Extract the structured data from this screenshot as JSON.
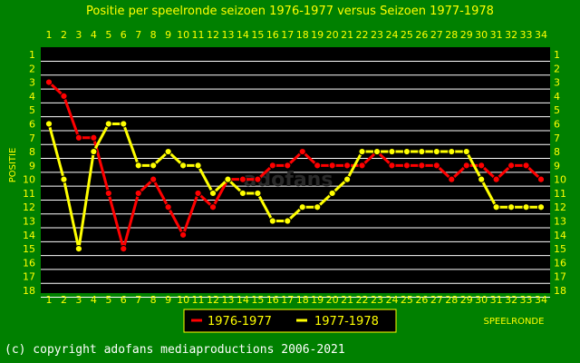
{
  "chart_data": {
    "type": "line",
    "title": "Positie per speelronde seizoen 1976-1977 versus Seizoen 1977-1978",
    "xlabel": "SPEELRONDE",
    "ylabel": "POSITIE",
    "x": [
      1,
      2,
      3,
      4,
      5,
      6,
      7,
      8,
      9,
      10,
      11,
      12,
      13,
      14,
      15,
      16,
      17,
      18,
      19,
      20,
      21,
      22,
      23,
      24,
      25,
      26,
      27,
      28,
      29,
      30,
      31,
      32,
      33,
      34
    ],
    "xlim": [
      1,
      34
    ],
    "ylim": [
      18,
      1
    ],
    "y_ticks": [
      1,
      2,
      3,
      4,
      5,
      6,
      7,
      8,
      9,
      10,
      11,
      12,
      13,
      14,
      15,
      16,
      17,
      18
    ],
    "grid": true,
    "legend_position": "bottom-center",
    "series": [
      {
        "name": "1976-1977",
        "color": "#ff0000",
        "values": [
          3,
          4,
          7,
          7,
          11,
          15,
          11,
          10,
          12,
          14,
          11,
          12,
          10,
          10,
          10,
          9,
          9,
          8,
          9,
          9,
          9,
          9,
          8,
          9,
          9,
          9,
          9,
          10,
          9,
          9,
          10,
          9,
          9,
          10
        ]
      },
      {
        "name": "1977-1978",
        "color": "#ffff00",
        "values": [
          6,
          10,
          15,
          8,
          6,
          6,
          9,
          9,
          8,
          9,
          9,
          11,
          10,
          11,
          11,
          13,
          13,
          12,
          12,
          11,
          10,
          8,
          8,
          8,
          8,
          8,
          8,
          8,
          8,
          10,
          12,
          12,
          12,
          12
        ]
      }
    ]
  },
  "watermark": "adofans",
  "copyright": "(c) copyright adofans mediaproductions 2006-2021",
  "colors": {
    "background": "#008000",
    "plot": "#000000",
    "text": "#ffff00",
    "grid": "#ffffff"
  }
}
